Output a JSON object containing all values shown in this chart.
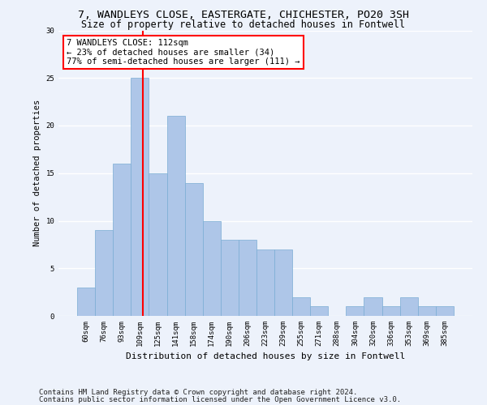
{
  "title1": "7, WANDLEYS CLOSE, EASTERGATE, CHICHESTER, PO20 3SH",
  "title2": "Size of property relative to detached houses in Fontwell",
  "xlabel": "Distribution of detached houses by size in Fontwell",
  "ylabel": "Number of detached properties",
  "categories": [
    "60sqm",
    "76sqm",
    "93sqm",
    "109sqm",
    "125sqm",
    "141sqm",
    "158sqm",
    "174sqm",
    "190sqm",
    "206sqm",
    "223sqm",
    "239sqm",
    "255sqm",
    "271sqm",
    "288sqm",
    "304sqm",
    "320sqm",
    "336sqm",
    "353sqm",
    "369sqm",
    "385sqm"
  ],
  "values": [
    3,
    9,
    16,
    25,
    15,
    21,
    14,
    10,
    8,
    8,
    7,
    7,
    2,
    1,
    0,
    1,
    2,
    1,
    2,
    1,
    1
  ],
  "bar_color": "#aec6e8",
  "bar_edge_color": "#7aadd4",
  "bar_width": 1.0,
  "red_line_x": 3.18,
  "annotation_text": "7 WANDLEYS CLOSE: 112sqm\n← 23% of detached houses are smaller (34)\n77% of semi-detached houses are larger (111) →",
  "annotation_box_color": "white",
  "annotation_box_edge_color": "red",
  "footnote1": "Contains HM Land Registry data © Crown copyright and database right 2024.",
  "footnote2": "Contains public sector information licensed under the Open Government Licence v3.0.",
  "ylim": [
    0,
    30
  ],
  "yticks": [
    0,
    5,
    10,
    15,
    20,
    25,
    30
  ],
  "background_color": "#edf2fb",
  "grid_color": "#ffffff",
  "title1_fontsize": 9.5,
  "title2_fontsize": 8.5,
  "xlabel_fontsize": 8,
  "ylabel_fontsize": 7.5,
  "tick_fontsize": 6.5,
  "annotation_fontsize": 7.5,
  "footnote_fontsize": 6.5
}
